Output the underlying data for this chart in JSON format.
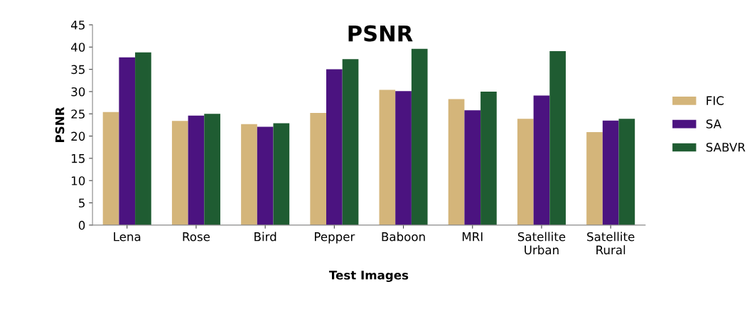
{
  "chart_data": {
    "type": "bar",
    "title": "PSNR",
    "xlabel": "Test Images",
    "ylabel": "PSNR",
    "categories": [
      "Lena",
      "Rose",
      "Bird",
      "Pepper",
      "Baboon",
      "MRI",
      "Satellite\nUrban",
      "Satellite\nRural"
    ],
    "series": [
      {
        "name": "FIC",
        "color": "#d4b57a",
        "values": [
          25.4,
          23.4,
          22.7,
          25.2,
          30.4,
          28.3,
          23.9,
          20.9
        ]
      },
      {
        "name": "SA",
        "color": "#4b1380",
        "values": [
          37.7,
          24.6,
          22.1,
          35.0,
          30.1,
          25.8,
          29.1,
          23.5
        ]
      },
      {
        "name": "SABVR",
        "color": "#1f5c32",
        "values": [
          38.8,
          25.0,
          22.9,
          37.3,
          39.6,
          30.0,
          39.1,
          23.9
        ]
      }
    ],
    "ylim": [
      0,
      45
    ],
    "yticks": [
      0,
      5,
      10,
      15,
      20,
      25,
      30,
      35,
      40,
      45
    ],
    "grid": false,
    "legend": "right"
  }
}
